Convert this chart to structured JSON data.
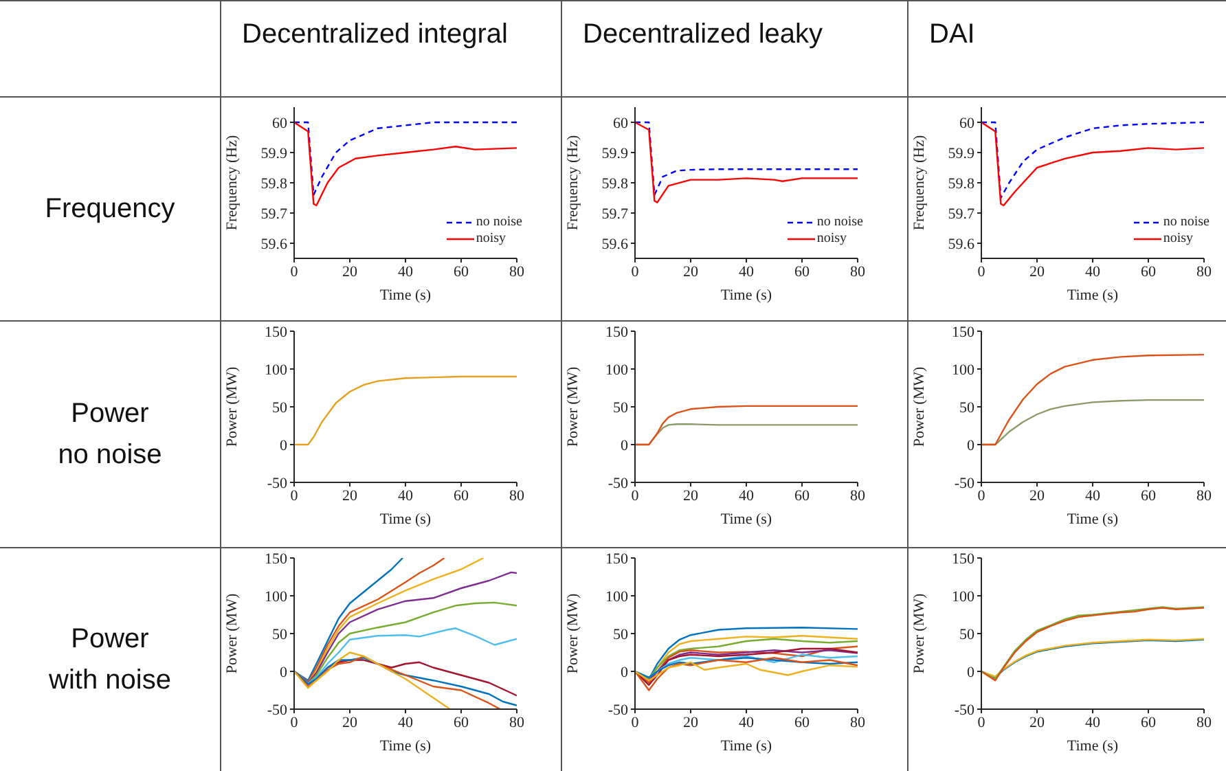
{
  "chart_data": [
    {
      "type": "other",
      "annotations": [
        "Decentralized integral",
        "Decentralized leaky",
        "DAI",
        "Frequency",
        "Power no noise",
        "Power with noise"
      ]
    },
    {
      "type": "line",
      "xlabel": "Time (s)",
      "ylabel": "Frequency (Hz)",
      "xlim": [
        0,
        80
      ],
      "xticks": [
        0,
        20,
        40,
        60,
        80
      ],
      "ylim": [
        59.55,
        60.05
      ],
      "yticks": [
        59.6,
        59.7,
        59.8,
        59.9,
        60
      ],
      "legend": "bottom right",
      "series": [
        {
          "name": "no noise",
          "color": "#0000ff",
          "line_style": "dashed",
          "x": [
            0,
            5,
            7,
            10,
            15,
            20,
            30,
            40,
            50,
            80
          ],
          "values": [
            60,
            60,
            59.76,
            59.82,
            59.9,
            59.94,
            59.98,
            59.99,
            60,
            60
          ]
        },
        {
          "name": "noisy",
          "color": "#ff0000",
          "line_style": "solid",
          "x": [
            0,
            5,
            7,
            8,
            12,
            16,
            22,
            30,
            40,
            45,
            50,
            58,
            65,
            80
          ],
          "values": [
            60,
            59.97,
            59.73,
            59.725,
            59.8,
            59.85,
            59.88,
            59.89,
            59.9,
            59.905,
            59.91,
            59.92,
            59.91,
            59.915
          ]
        }
      ]
    },
    {
      "type": "line",
      "xlabel": "Time (s)",
      "ylabel": "Frequency (Hz)",
      "xlim": [
        0,
        80
      ],
      "xticks": [
        0,
        20,
        40,
        60,
        80
      ],
      "ylim": [
        59.55,
        60.05
      ],
      "yticks": [
        59.6,
        59.7,
        59.8,
        59.9,
        60
      ],
      "legend": "bottom right",
      "series": [
        {
          "name": "no noise",
          "color": "#0000ff",
          "line_style": "dashed",
          "x": [
            0,
            5,
            7,
            10,
            15,
            20,
            30,
            80
          ],
          "values": [
            60,
            60,
            59.76,
            59.82,
            59.84,
            59.843,
            59.845,
            59.845
          ]
        },
        {
          "name": "noisy",
          "color": "#ff0000",
          "line_style": "solid",
          "x": [
            0,
            5,
            7,
            8,
            12,
            20,
            30,
            40,
            50,
            53,
            60,
            70,
            80
          ],
          "values": [
            60,
            59.975,
            59.74,
            59.735,
            59.79,
            59.81,
            59.81,
            59.815,
            59.81,
            59.805,
            59.815,
            59.815,
            59.815
          ]
        }
      ]
    },
    {
      "type": "line",
      "xlabel": "Time (s)",
      "ylabel": "Frequency (Hz)",
      "xlim": [
        0,
        80
      ],
      "xticks": [
        0,
        20,
        40,
        60,
        80
      ],
      "ylim": [
        59.55,
        60.05
      ],
      "yticks": [
        59.6,
        59.7,
        59.8,
        59.9,
        60
      ],
      "legend": "bottom right",
      "series": [
        {
          "name": "no noise",
          "color": "#0000ff",
          "line_style": "dashed",
          "x": [
            0,
            5,
            7,
            10,
            15,
            20,
            30,
            40,
            50,
            60,
            80
          ],
          "values": [
            60,
            60,
            59.75,
            59.8,
            59.87,
            59.91,
            59.95,
            59.98,
            59.99,
            59.995,
            60
          ]
        },
        {
          "name": "noisy",
          "color": "#ff0000",
          "line_style": "solid",
          "x": [
            0,
            5,
            7,
            8,
            12,
            20,
            30,
            40,
            50,
            60,
            70,
            80
          ],
          "values": [
            60,
            59.97,
            59.73,
            59.725,
            59.77,
            59.85,
            59.88,
            59.9,
            59.905,
            59.915,
            59.91,
            59.915
          ]
        }
      ]
    },
    {
      "type": "line",
      "xlabel": "Time (s)",
      "ylabel": "Power (MW)",
      "xlim": [
        0,
        80
      ],
      "xticks": [
        0,
        20,
        40,
        60,
        80
      ],
      "ylim": [
        -50,
        150
      ],
      "yticks": [
        -50,
        0,
        50,
        100,
        150
      ],
      "series": [
        {
          "color": "#e6a020",
          "x": [
            0,
            5,
            7,
            10,
            15,
            20,
            25,
            30,
            40,
            50,
            60,
            80
          ],
          "values": [
            0,
            0,
            10,
            30,
            55,
            70,
            79,
            84,
            88,
            89,
            90,
            90
          ]
        }
      ]
    },
    {
      "type": "line",
      "xlabel": "Time (s)",
      "ylabel": "Power (MW)",
      "xlim": [
        0,
        80
      ],
      "xticks": [
        0,
        20,
        40,
        60,
        80
      ],
      "ylim": [
        -50,
        150
      ],
      "yticks": [
        -50,
        0,
        50,
        100,
        150
      ],
      "series": [
        {
          "color": "#8c9a6a",
          "x": [
            0,
            5,
            8,
            10,
            12,
            15,
            20,
            30,
            80
          ],
          "values": [
            0,
            0,
            14,
            22,
            26,
            27,
            27,
            26,
            26
          ]
        },
        {
          "color": "#d95319",
          "x": [
            0,
            5,
            8,
            10,
            12,
            15,
            20,
            30,
            40,
            80
          ],
          "values": [
            0,
            0,
            15,
            28,
            36,
            42,
            47,
            50,
            51,
            51
          ]
        }
      ]
    },
    {
      "type": "line",
      "xlabel": "Time (s)",
      "ylabel": "Power (MW)",
      "xlim": [
        0,
        80
      ],
      "xticks": [
        0,
        20,
        40,
        60,
        80
      ],
      "ylim": [
        -50,
        150
      ],
      "yticks": [
        -50,
        0,
        50,
        100,
        150
      ],
      "series": [
        {
          "color": "#8c9a6a",
          "x": [
            0,
            5,
            8,
            10,
            15,
            20,
            25,
            30,
            40,
            50,
            60,
            80
          ],
          "values": [
            0,
            0,
            10,
            17,
            30,
            40,
            47,
            51,
            56,
            58,
            59,
            59
          ]
        },
        {
          "color": "#d95319",
          "x": [
            0,
            5,
            8,
            10,
            15,
            20,
            25,
            30,
            40,
            50,
            60,
            80
          ],
          "values": [
            0,
            0,
            20,
            33,
            60,
            80,
            94,
            103,
            112,
            116,
            118,
            119
          ]
        }
      ]
    },
    {
      "type": "line",
      "xlabel": "Time (s)",
      "ylabel": "Power (MW)",
      "xlim": [
        0,
        80
      ],
      "xticks": [
        0,
        20,
        40,
        60,
        80
      ],
      "ylim": [
        -50,
        150
      ],
      "yticks": [
        -50,
        0,
        50,
        100,
        150
      ],
      "series": [
        {
          "color": "#0072bd",
          "x": [
            0,
            5,
            8,
            12,
            16,
            20,
            25,
            30,
            35,
            39
          ],
          "values": [
            0,
            -12,
            10,
            40,
            70,
            90,
            105,
            120,
            135,
            150
          ]
        },
        {
          "color": "#d95319",
          "x": [
            0,
            5,
            8,
            12,
            16,
            20,
            30,
            40,
            45,
            50,
            54
          ],
          "values": [
            0,
            -14,
            5,
            35,
            60,
            78,
            95,
            118,
            130,
            140,
            150
          ]
        },
        {
          "color": "#edb120",
          "x": [
            0,
            5,
            8,
            12,
            16,
            20,
            30,
            40,
            50,
            60,
            68
          ],
          "values": [
            0,
            -15,
            0,
            30,
            55,
            72,
            90,
            107,
            122,
            135,
            150
          ]
        },
        {
          "color": "#7e2f8e",
          "x": [
            0,
            5,
            8,
            12,
            16,
            20,
            30,
            40,
            50,
            60,
            70,
            78,
            80
          ],
          "values": [
            0,
            -15,
            -2,
            25,
            50,
            65,
            82,
            93,
            97,
            110,
            120,
            131,
            130
          ]
        },
        {
          "color": "#77ac30",
          "x": [
            0,
            5,
            8,
            12,
            16,
            20,
            30,
            40,
            50,
            58,
            65,
            72,
            80
          ],
          "values": [
            0,
            -16,
            -5,
            18,
            38,
            50,
            58,
            65,
            78,
            87,
            90,
            91,
            87
          ]
        },
        {
          "color": "#4dbeee",
          "x": [
            0,
            5,
            8,
            12,
            16,
            20,
            30,
            40,
            45,
            55,
            58,
            65,
            72,
            80
          ],
          "values": [
            0,
            -16,
            -8,
            10,
            25,
            42,
            47,
            48,
            46,
            55,
            57,
            47,
            35,
            43
          ]
        },
        {
          "color": "#a2142f",
          "x": [
            0,
            5,
            8,
            12,
            16,
            20,
            25,
            30,
            35,
            40,
            45,
            50,
            60,
            70,
            80
          ],
          "values": [
            0,
            -17,
            -10,
            5,
            12,
            15,
            15,
            10,
            5,
            10,
            12,
            5,
            -5,
            -15,
            -32
          ]
        },
        {
          "color": "#0072bd",
          "x": [
            0,
            5,
            8,
            12,
            16,
            20,
            25,
            30,
            35,
            40,
            50,
            60,
            70,
            75,
            80
          ],
          "values": [
            0,
            -17,
            -10,
            5,
            15,
            15,
            18,
            10,
            0,
            -5,
            -12,
            -20,
            -30,
            -40,
            -45
          ]
        },
        {
          "color": "#d95319",
          "x": [
            0,
            5,
            8,
            12,
            16,
            20,
            25,
            30,
            40,
            50,
            60,
            70,
            74
          ],
          "values": [
            0,
            -20,
            -12,
            2,
            10,
            12,
            20,
            10,
            -5,
            -20,
            -25,
            -42,
            -50
          ]
        },
        {
          "color": "#edb120",
          "x": [
            0,
            5,
            8,
            12,
            16,
            20,
            25,
            30,
            40,
            50,
            56
          ],
          "values": [
            0,
            -22,
            -12,
            0,
            15,
            25,
            20,
            10,
            -10,
            -35,
            -50
          ]
        }
      ]
    },
    {
      "type": "line",
      "xlabel": "Time (s)",
      "ylabel": "Power (MW)",
      "xlim": [
        0,
        80
      ],
      "xticks": [
        0,
        20,
        40,
        60,
        80
      ],
      "ylim": [
        -50,
        150
      ],
      "yticks": [
        -50,
        0,
        50,
        100,
        150
      ],
      "series": [
        {
          "color": "#0072bd",
          "x": [
            0,
            5,
            8,
            12,
            16,
            20,
            30,
            40,
            60,
            80
          ],
          "values": [
            0,
            -10,
            10,
            30,
            42,
            48,
            55,
            57,
            58,
            56
          ]
        },
        {
          "color": "#edb120",
          "x": [
            0,
            5,
            8,
            12,
            16,
            20,
            30,
            40,
            50,
            60,
            70,
            80
          ],
          "values": [
            0,
            -10,
            5,
            25,
            36,
            40,
            43,
            46,
            45,
            47,
            45,
            43
          ]
        },
        {
          "color": "#77ac30",
          "x": [
            0,
            5,
            8,
            12,
            16,
            20,
            30,
            40,
            50,
            60,
            70,
            80
          ],
          "values": [
            0,
            -10,
            5,
            20,
            28,
            30,
            33,
            40,
            43,
            40,
            38,
            40
          ]
        },
        {
          "color": "#d95319",
          "x": [
            0,
            5,
            8,
            12,
            16,
            20,
            30,
            40,
            50,
            60,
            70,
            80
          ],
          "values": [
            0,
            -15,
            0,
            18,
            26,
            28,
            25,
            26,
            24,
            20,
            30,
            33
          ]
        },
        {
          "color": "#7e2f8e",
          "x": [
            0,
            5,
            8,
            12,
            16,
            20,
            30,
            40,
            50,
            60,
            70,
            80
          ],
          "values": [
            0,
            -12,
            0,
            15,
            22,
            25,
            22,
            25,
            28,
            25,
            28,
            24
          ]
        },
        {
          "color": "#a2142f",
          "x": [
            0,
            5,
            8,
            12,
            16,
            20,
            30,
            40,
            50,
            60,
            70,
            80
          ],
          "values": [
            0,
            -18,
            -5,
            15,
            20,
            22,
            20,
            22,
            25,
            30,
            30,
            25
          ]
        },
        {
          "color": "#4dbeee",
          "x": [
            0,
            5,
            8,
            12,
            16,
            20,
            30,
            40,
            50,
            60,
            70,
            80
          ],
          "values": [
            0,
            -8,
            0,
            10,
            15,
            18,
            15,
            20,
            12,
            22,
            18,
            20
          ]
        },
        {
          "color": "#0072bd",
          "x": [
            0,
            5,
            8,
            12,
            16,
            20,
            30,
            40,
            50,
            60,
            70,
            80
          ],
          "values": [
            0,
            -8,
            0,
            8,
            12,
            10,
            15,
            18,
            15,
            12,
            10,
            12
          ]
        },
        {
          "color": "#d95319",
          "x": [
            0,
            5,
            8,
            12,
            16,
            20,
            30,
            40,
            50,
            60,
            70,
            80
          ],
          "values": [
            0,
            -25,
            -10,
            5,
            10,
            8,
            15,
            12,
            18,
            12,
            15,
            8
          ]
        },
        {
          "color": "#edb120",
          "x": [
            0,
            5,
            8,
            12,
            16,
            20,
            25,
            30,
            40,
            45,
            55,
            60,
            70,
            80
          ],
          "values": [
            0,
            -12,
            -5,
            5,
            8,
            12,
            2,
            5,
            10,
            2,
            -5,
            0,
            8,
            6
          ]
        }
      ]
    },
    {
      "type": "line",
      "xlabel": "Time (s)",
      "ylabel": "Power (MW)",
      "xlim": [
        0,
        80
      ],
      "xticks": [
        0,
        20,
        40,
        60,
        80
      ],
      "ylim": [
        -50,
        150
      ],
      "yticks": [
        -50,
        0,
        50,
        100,
        150
      ],
      "series": [
        {
          "color": "#0072bd",
          "x": [
            0,
            5,
            8,
            12,
            16,
            20,
            30,
            40,
            50,
            60,
            70,
            80
          ],
          "values": [
            0,
            -8,
            2,
            12,
            20,
            26,
            33,
            37,
            39,
            41,
            40,
            42
          ]
        },
        {
          "color": "#edb120",
          "x": [
            0,
            5,
            8,
            12,
            16,
            20,
            30,
            40,
            50,
            60,
            70,
            80
          ],
          "values": [
            0,
            -7,
            3,
            13,
            21,
            27,
            34,
            38,
            40,
            42,
            41,
            43
          ]
        },
        {
          "color": "#77ac30",
          "x": [
            0,
            5,
            8,
            12,
            16,
            20,
            25,
            30,
            35,
            40,
            50,
            60,
            65,
            70,
            80
          ],
          "values": [
            0,
            -10,
            6,
            27,
            42,
            54,
            61,
            69,
            74,
            75,
            79,
            83,
            85,
            83,
            85
          ]
        },
        {
          "color": "#d95319",
          "x": [
            0,
            5,
            8,
            12,
            16,
            20,
            25,
            30,
            35,
            40,
            45,
            50,
            55,
            60,
            65,
            70,
            80
          ],
          "values": [
            0,
            -12,
            5,
            25,
            40,
            52,
            60,
            67,
            72,
            74,
            76,
            78,
            79,
            82,
            84,
            82,
            84
          ]
        }
      ]
    }
  ]
}
